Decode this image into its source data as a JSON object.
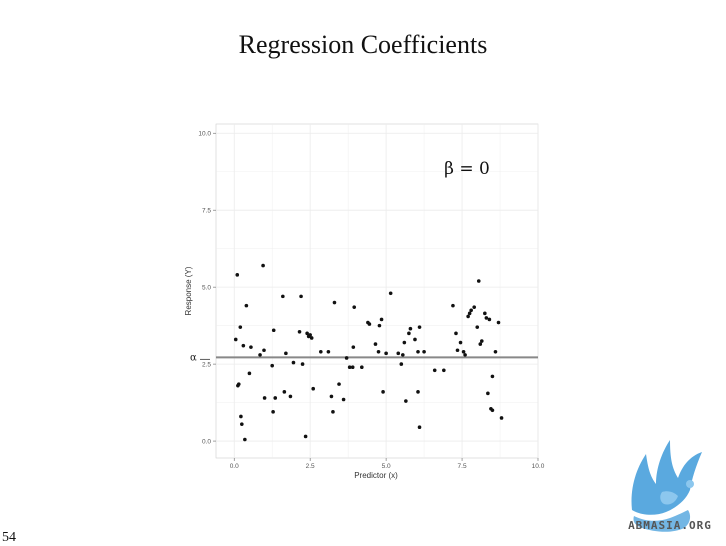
{
  "slide": {
    "title": "Regression Coefficients",
    "page_number": "54"
  },
  "logo": {
    "text": "ABMASIA.ORG",
    "color": "#5aa9df"
  },
  "chart_data": {
    "type": "scatter",
    "xlabel": "Predictor (x)",
    "ylabel": "Response (Y)",
    "xlim": [
      -0.6,
      10.0
    ],
    "ylim": [
      -0.55,
      10.3
    ],
    "xticks": [
      0.0,
      2.5,
      5.0,
      7.5,
      10.0
    ],
    "xtick_labels": [
      "0.0",
      "2.5",
      "5.0",
      "7.5",
      "10.0"
    ],
    "yticks": [
      0.0,
      2.5,
      5.0,
      7.5,
      10.0
    ],
    "ytick_labels": [
      "0.0",
      "2.5",
      "5.0",
      "7.5",
      "10.0"
    ],
    "grid": true,
    "annotation": "β = 0",
    "hline": {
      "y": 2.72,
      "label": "α",
      "color": "#888888"
    },
    "point_color": "#111111",
    "background": "#ffffff",
    "grid_color": "#ebebeb",
    "points": [
      [
        0.05,
        3.3
      ],
      [
        0.1,
        5.4
      ],
      [
        0.12,
        1.8
      ],
      [
        0.15,
        1.85
      ],
      [
        0.2,
        3.7
      ],
      [
        0.22,
        0.8
      ],
      [
        0.25,
        0.55
      ],
      [
        0.3,
        3.1
      ],
      [
        0.35,
        0.05
      ],
      [
        0.4,
        4.4
      ],
      [
        0.5,
        2.2
      ],
      [
        0.55,
        3.05
      ],
      [
        0.85,
        2.8
      ],
      [
        0.95,
        5.7
      ],
      [
        0.98,
        2.95
      ],
      [
        1.0,
        1.4
      ],
      [
        1.25,
        2.45
      ],
      [
        1.28,
        0.95
      ],
      [
        1.3,
        3.6
      ],
      [
        1.35,
        1.4
      ],
      [
        1.6,
        4.7
      ],
      [
        1.65,
        1.6
      ],
      [
        1.7,
        2.85
      ],
      [
        1.85,
        1.45
      ],
      [
        1.95,
        2.55
      ],
      [
        2.15,
        3.55
      ],
      [
        2.2,
        4.7
      ],
      [
        2.25,
        2.5
      ],
      [
        2.35,
        0.15
      ],
      [
        2.4,
        3.5
      ],
      [
        2.45,
        3.4
      ],
      [
        2.5,
        3.45
      ],
      [
        2.55,
        3.35
      ],
      [
        2.6,
        1.7
      ],
      [
        2.85,
        2.9
      ],
      [
        3.1,
        2.9
      ],
      [
        3.2,
        1.45
      ],
      [
        3.25,
        0.95
      ],
      [
        3.3,
        4.5
      ],
      [
        3.45,
        1.85
      ],
      [
        3.6,
        1.35
      ],
      [
        3.7,
        2.7
      ],
      [
        3.8,
        2.4
      ],
      [
        3.9,
        2.4
      ],
      [
        3.92,
        3.05
      ],
      [
        3.95,
        4.35
      ],
      [
        4.2,
        2.4
      ],
      [
        4.4,
        3.85
      ],
      [
        4.45,
        3.8
      ],
      [
        4.65,
        3.15
      ],
      [
        4.75,
        2.9
      ],
      [
        4.78,
        3.75
      ],
      [
        4.85,
        3.95
      ],
      [
        4.9,
        1.6
      ],
      [
        5.0,
        2.85
      ],
      [
        5.15,
        4.8
      ],
      [
        5.4,
        2.85
      ],
      [
        5.5,
        2.5
      ],
      [
        5.55,
        2.8
      ],
      [
        5.6,
        3.2
      ],
      [
        5.65,
        1.3
      ],
      [
        5.75,
        3.5
      ],
      [
        5.8,
        3.65
      ],
      [
        5.95,
        3.3
      ],
      [
        6.05,
        1.6
      ],
      [
        6.05,
        2.9
      ],
      [
        6.1,
        3.7
      ],
      [
        6.1,
        0.45
      ],
      [
        6.25,
        2.9
      ],
      [
        6.6,
        2.3
      ],
      [
        6.9,
        2.3
      ],
      [
        7.2,
        4.4
      ],
      [
        7.3,
        3.5
      ],
      [
        7.35,
        2.95
      ],
      [
        7.45,
        3.2
      ],
      [
        7.55,
        2.9
      ],
      [
        7.6,
        2.8
      ],
      [
        7.7,
        4.05
      ],
      [
        7.75,
        4.15
      ],
      [
        7.8,
        4.25
      ],
      [
        7.9,
        4.35
      ],
      [
        8.0,
        3.7
      ],
      [
        8.05,
        5.2
      ],
      [
        8.1,
        3.15
      ],
      [
        8.15,
        3.25
      ],
      [
        8.25,
        4.15
      ],
      [
        8.3,
        4.0
      ],
      [
        8.35,
        1.55
      ],
      [
        8.4,
        3.95
      ],
      [
        8.45,
        1.05
      ],
      [
        8.5,
        1.0
      ],
      [
        8.5,
        2.1
      ],
      [
        8.6,
        2.9
      ],
      [
        8.7,
        3.85
      ],
      [
        8.8,
        0.75
      ]
    ]
  }
}
